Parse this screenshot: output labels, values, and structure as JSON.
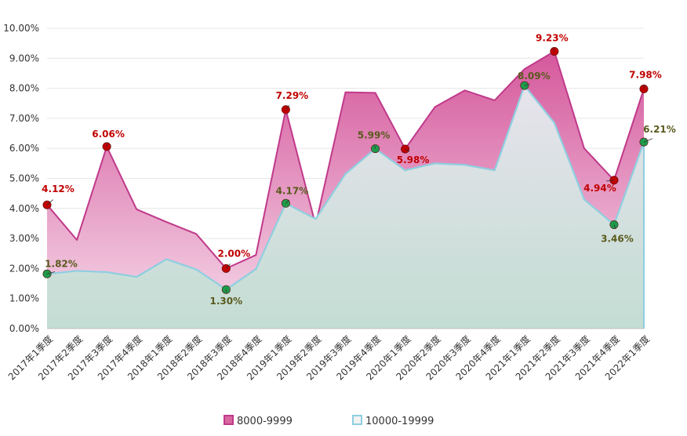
{
  "chart_data": {
    "type": "area",
    "title": "",
    "xlabel": "",
    "ylabel": "",
    "ylim": [
      0,
      10
    ],
    "y_ticks": [
      "0.00%",
      "1.00%",
      "2.00%",
      "3.00%",
      "4.00%",
      "5.00%",
      "6.00%",
      "7.00%",
      "8.00%",
      "9.00%",
      "10.00%"
    ],
    "grid": "horizontal",
    "legend_position": "bottom-center",
    "categories": [
      "2017年1季度",
      "2017年2季度",
      "2017年3季度",
      "2017年4季度",
      "2018年1季度",
      "2018年2季度",
      "2018年3季度",
      "2018年4季度",
      "2019年1季度",
      "2019年2季度",
      "2019年3季度",
      "2019年4季度",
      "2020年1季度",
      "2020年2季度",
      "2020年3季度",
      "2020年4季度",
      "2021年1季度",
      "2021年2季度",
      "2021年3季度",
      "2021年4季度",
      "2022年1季度"
    ],
    "series": [
      {
        "name": "8000-9999",
        "color": "#c0398a",
        "fill_top": "#d5589c",
        "fill_bottom": "#f6dbea",
        "marker_color": "#c00000",
        "values": [
          4.12,
          2.95,
          6.06,
          3.97,
          3.55,
          3.15,
          2.0,
          2.45,
          7.29,
          3.45,
          7.87,
          7.85,
          5.98,
          7.38,
          7.93,
          7.6,
          8.64,
          9.23,
          6.0,
          4.94,
          7.98
        ],
        "labels": [
          {
            "index": 0,
            "text": "4.12%"
          },
          {
            "index": 2,
            "text": "6.06%"
          },
          {
            "index": 6,
            "text": "2.00%"
          },
          {
            "index": 8,
            "text": "7.29%"
          },
          {
            "index": 12,
            "text": "5.98%"
          },
          {
            "index": 17,
            "text": "9.23%"
          },
          {
            "index": 19,
            "text": "4.94%"
          },
          {
            "index": 20,
            "text": "7.98%"
          }
        ]
      },
      {
        "name": "10000-19999",
        "color": "#8ecfe0",
        "fill_top": "#e7e3ec",
        "fill_bottom": "#c3ddd3",
        "marker_color": "#1e9a4a",
        "values": [
          1.82,
          1.92,
          1.88,
          1.72,
          2.31,
          1.97,
          1.3,
          1.98,
          4.17,
          3.65,
          5.15,
          5.99,
          5.27,
          5.5,
          5.45,
          5.27,
          8.09,
          6.85,
          4.3,
          3.46,
          6.21
        ],
        "labels": [
          {
            "index": 0,
            "text": "1.82%"
          },
          {
            "index": 6,
            "text": "1.30%"
          },
          {
            "index": 8,
            "text": "4.17%"
          },
          {
            "index": 11,
            "text": "5.99%"
          },
          {
            "index": 16,
            "text": "8.09%"
          },
          {
            "index": 19,
            "text": "3.46%"
          },
          {
            "index": 20,
            "text": "6.21%"
          }
        ]
      }
    ]
  }
}
